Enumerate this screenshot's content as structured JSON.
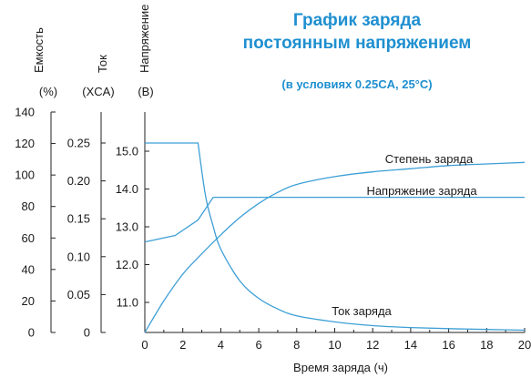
{
  "chart_data": {
    "type": "line",
    "title_line1": "График заряда",
    "title_line2": "постоянным напряжением",
    "subtitle": "(в условиях 0.25CA, 25°C)",
    "xlabel": "Время заряда (ч)",
    "xlim": [
      0,
      20
    ],
    "x_ticks": [
      "0",
      "2",
      "4",
      "6",
      "8",
      "10",
      "12",
      "14",
      "16",
      "18",
      "20"
    ],
    "axes": [
      {
        "key": "capacity",
        "label": "Емкость",
        "unit": "(%)",
        "ylim": [
          0,
          140
        ],
        "ticks": [
          "0",
          "20",
          "40",
          "60",
          "80",
          "100",
          "120",
          "140"
        ]
      },
      {
        "key": "current",
        "label": "Ток",
        "unit": "(XCA)",
        "ylim": [
          0,
          0.25
        ],
        "ticks": [
          "0",
          "0.05",
          "0.10",
          "0.15",
          "0.20",
          "0.25"
        ]
      },
      {
        "key": "voltage",
        "label": "Напряжение",
        "unit": "(B)",
        "ylim": [
          10.3,
          15.3
        ],
        "ticks": [
          "11.0",
          "12.0",
          "13.0",
          "14.0",
          "15.0"
        ]
      }
    ],
    "series": [
      {
        "name": "Степень заряда",
        "axis": "capacity",
        "x": [
          0,
          1,
          2,
          3,
          4,
          5,
          6,
          7,
          8,
          10,
          12,
          14,
          16,
          18,
          20
        ],
        "y": [
          0,
          20,
          37,
          50,
          62,
          73,
          82,
          89,
          94,
          99,
          102,
          104,
          106,
          107,
          108
        ]
      },
      {
        "name": "Напряжение заряда",
        "axis": "voltage",
        "x": [
          0,
          1.6,
          2.8,
          3.6,
          20
        ],
        "y": [
          12.6,
          12.77,
          13.18,
          13.78,
          13.78
        ]
      },
      {
        "name": "Ток заряда",
        "axis": "current",
        "x": [
          0,
          2.8,
          3.2,
          3.6,
          4,
          5,
          6,
          7,
          8,
          10,
          12,
          14,
          16,
          18,
          20
        ],
        "y": [
          0.25,
          0.25,
          0.18,
          0.14,
          0.11,
          0.068,
          0.045,
          0.031,
          0.022,
          0.014,
          0.009,
          0.0065,
          0.005,
          0.004,
          0.003
        ]
      }
    ]
  }
}
